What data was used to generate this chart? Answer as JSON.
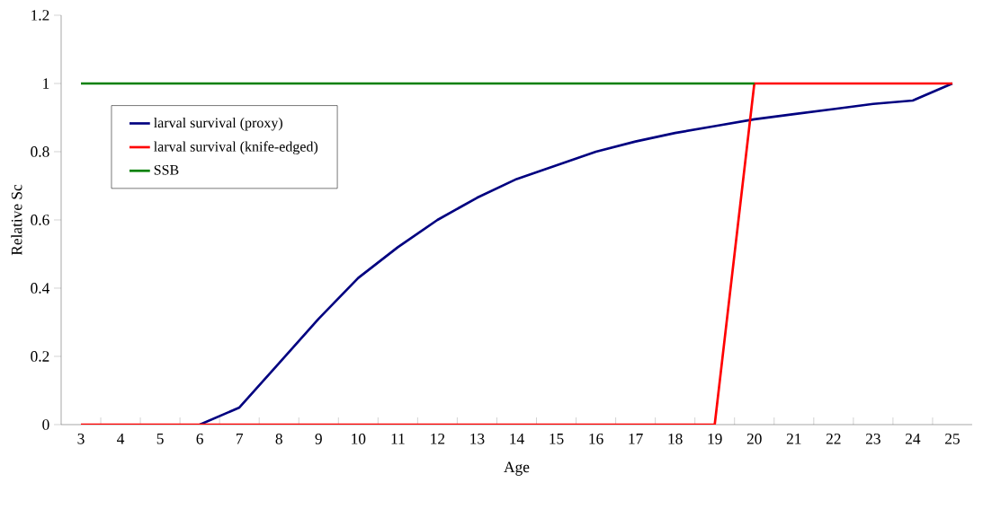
{
  "chart_data": {
    "type": "line",
    "xlabel": "Age",
    "ylabel": "Relative Sc",
    "categories": [
      "3",
      "4",
      "5",
      "6",
      "7",
      "8",
      "9",
      "10",
      "11",
      "12",
      "13",
      "14",
      "15",
      "16",
      "17",
      "18",
      "19",
      "20",
      "21",
      "22",
      "23",
      "24",
      "25"
    ],
    "series": [
      {
        "name": "larval survival (proxy)",
        "color": "#000080",
        "values": [
          null,
          null,
          null,
          0,
          0.05,
          0.18,
          0.31,
          0.43,
          0.52,
          0.6,
          0.665,
          0.72,
          0.76,
          0.8,
          0.83,
          0.855,
          0.875,
          0.895,
          0.91,
          0.925,
          0.94,
          0.95,
          1
        ]
      },
      {
        "name": "larval survival (knife-edged)",
        "color": "#ff0000",
        "values": [
          0,
          0,
          0,
          0,
          0,
          0,
          0,
          0,
          0,
          0,
          0,
          0,
          0,
          0,
          0,
          0,
          0,
          1,
          1,
          1,
          1,
          1,
          1
        ]
      },
      {
        "name": "SSB",
        "color": "#008000",
        "values": [
          1,
          1,
          1,
          1,
          1,
          1,
          1,
          1,
          1,
          1,
          1,
          1,
          1,
          1,
          1,
          1,
          1,
          1,
          null,
          null,
          null,
          null,
          null
        ]
      }
    ],
    "ylim": [
      0,
      1.2
    ],
    "yticks": [
      0,
      0.2,
      0.4,
      0.6,
      0.8,
      1,
      1.2
    ],
    "legend": "top left",
    "grid": false,
    "marker": "none",
    "line_style": "solid"
  }
}
